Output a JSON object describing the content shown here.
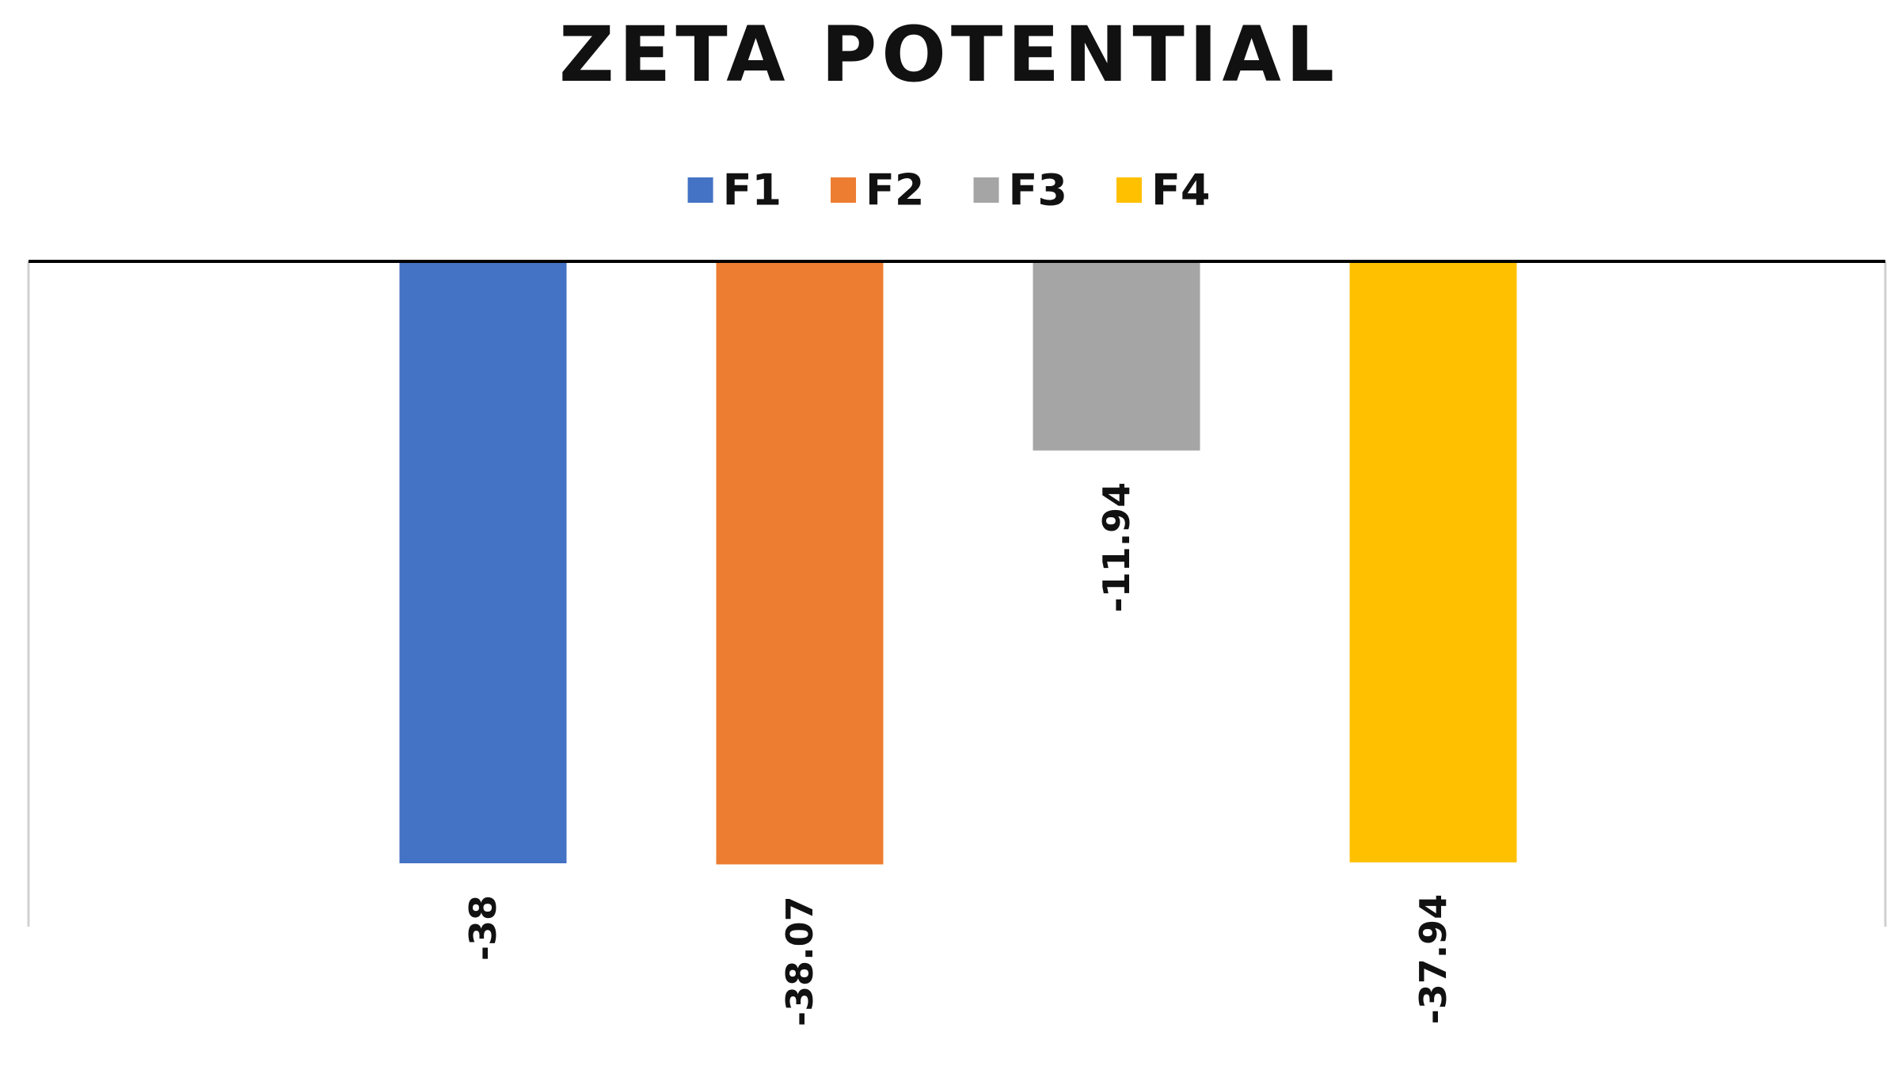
{
  "chart_data": {
    "type": "bar",
    "title": "ZETA POTENTIAL",
    "xlabel": "",
    "ylabel": "",
    "categories": [
      "F1",
      "F2",
      "F3",
      "F4"
    ],
    "values": [
      -38,
      -38.07,
      -11.94,
      -37.94
    ],
    "data_labels": [
      "-38",
      "-38.07",
      "-11.94",
      "-37.94"
    ],
    "colors": [
      "#4472C4",
      "#ED7D31",
      "#A5A5A5",
      "#FFC000"
    ],
    "ylim": [
      -40,
      0
    ],
    "grid": false,
    "legend": "top-center",
    "data_label_orientation": "vertical"
  }
}
